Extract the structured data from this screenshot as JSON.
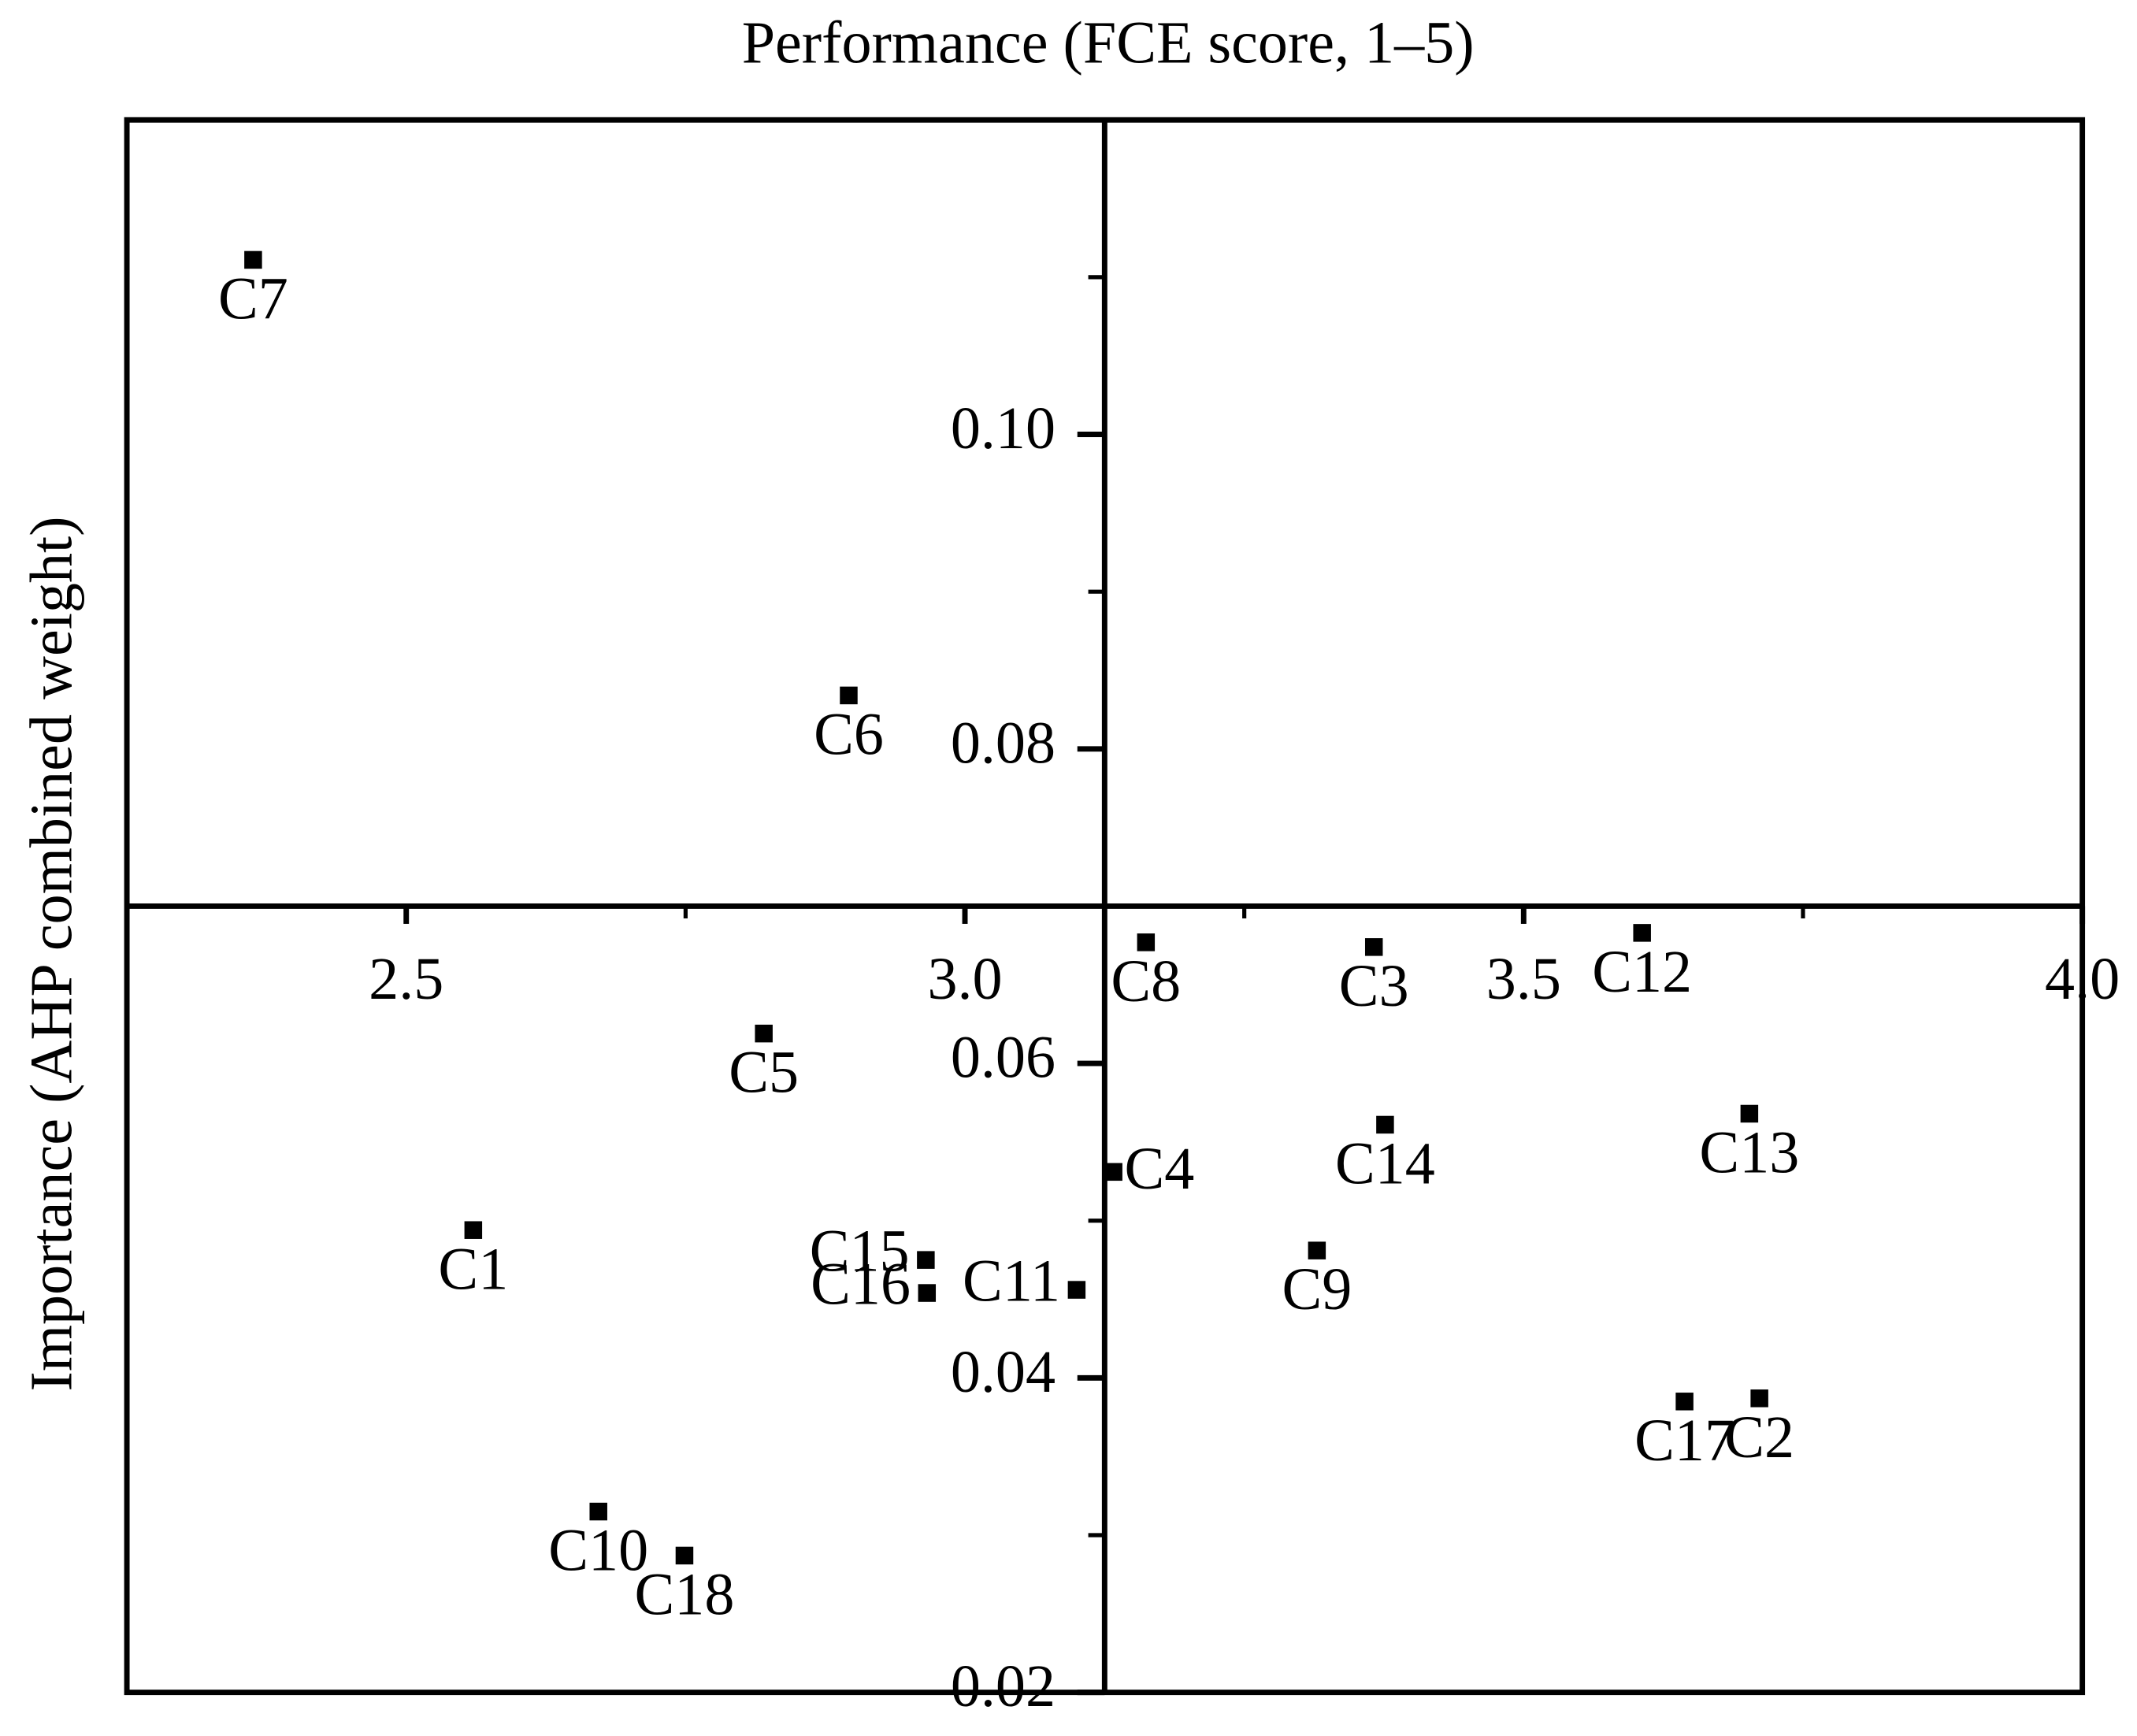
{
  "chart_data": {
    "type": "scatter",
    "title": "Performance (FCE score, 1–5)",
    "y_label": "Importance (AHP combined weight)",
    "series": [
      {
        "color": "#000000",
        "labels": [
          "C1",
          "C2",
          "C3",
          "C4",
          "C5",
          "C6",
          "C7",
          "C8",
          "C9",
          "C10",
          "C11",
          "C12",
          "C13",
          "C14",
          "C15",
          "C16",
          "C17",
          "C18"
        ],
        "x": [
          2.56,
          3.711,
          3.366,
          3.133,
          2.82,
          2.896,
          2.363,
          3.162,
          3.315,
          2.672,
          3.1,
          3.606,
          3.702,
          3.376,
          2.965,
          2.966,
          3.644,
          2.749
        ],
        "values": [
          0.0494,
          0.0387,
          0.0674,
          0.0531,
          0.0619,
          0.0834,
          0.1111,
          0.0677,
          0.0481,
          0.0315,
          0.0456,
          0.0683,
          0.0568,
          0.0561,
          0.0475,
          0.0454,
          0.0385,
          0.0287
        ]
      }
    ],
    "xlim": [
      2.25,
      4.0
    ],
    "ylim": [
      0.02,
      0.12
    ],
    "xticks": [
      {
        "value": 2.5,
        "label": "2.5"
      },
      {
        "value": 3.0,
        "label": "3.0"
      },
      {
        "value": 3.5,
        "label": "3.5"
      },
      {
        "value": 4.0,
        "label": "4.0"
      }
    ],
    "yticks": [
      {
        "value": 0.02,
        "label": "0.02"
      },
      {
        "value": 0.04,
        "label": "0.04"
      },
      {
        "value": 0.06,
        "label": "0.06"
      },
      {
        "value": 0.08,
        "label": "0.08"
      },
      {
        "value": 0.1,
        "label": "0.10"
      }
    ],
    "xminorticks": [
      2.75,
      3.25,
      3.75
    ],
    "yminorticks": [
      0.03,
      0.05,
      0.07,
      0.09,
      0.11
    ],
    "x_axis_crosses_y_at": 0.07,
    "y_axis_crosses_x_at": 3.125,
    "grid": false
  }
}
